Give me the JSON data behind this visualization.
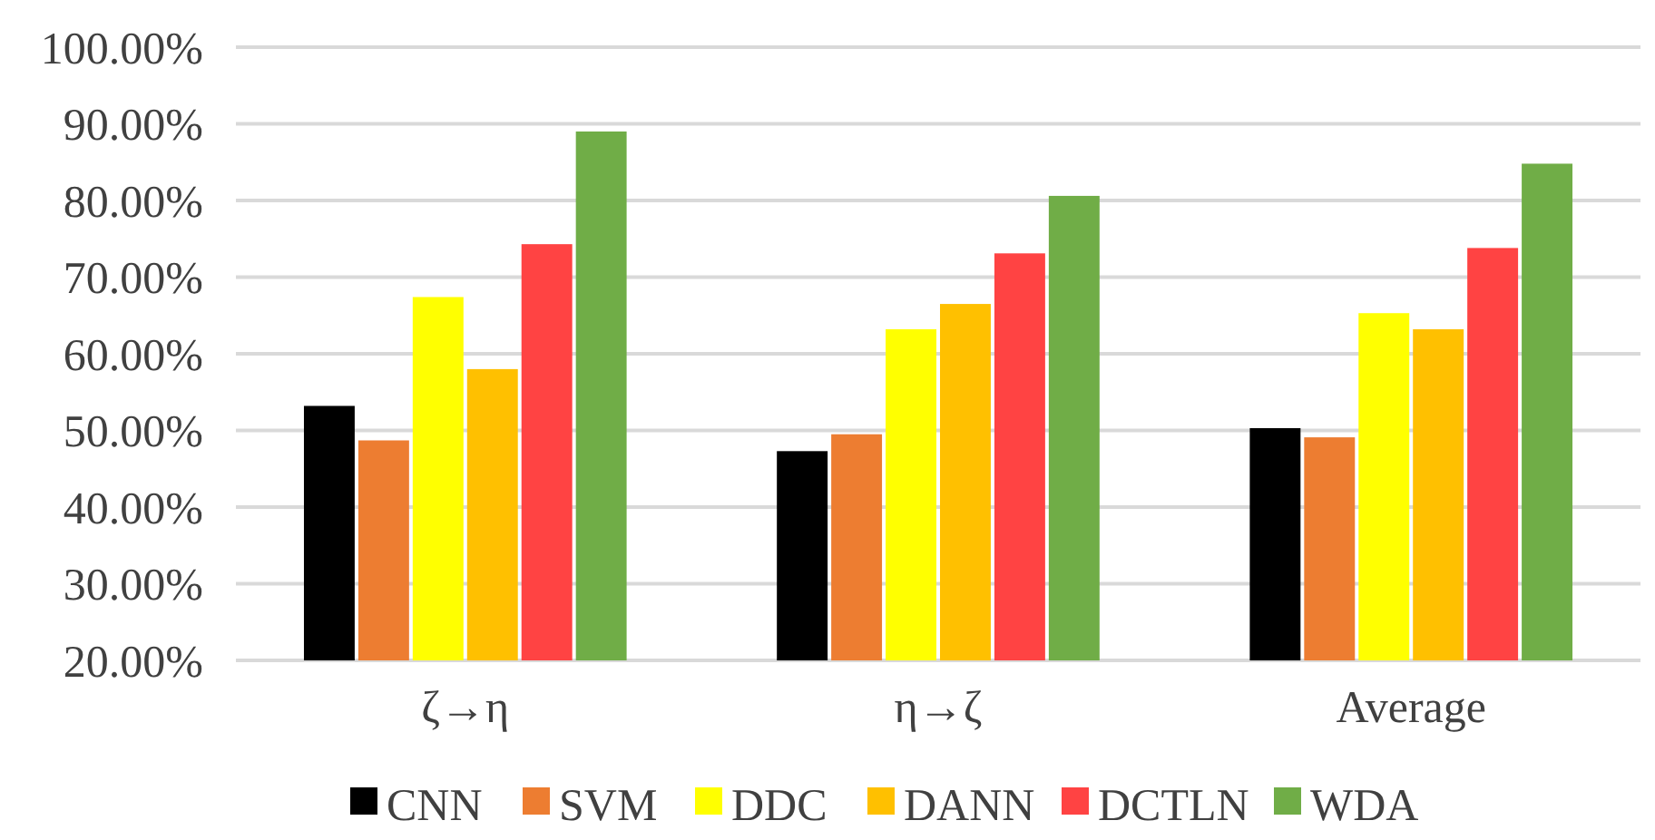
{
  "chart_data": {
    "type": "bar",
    "categories": [
      "ζ→η",
      "η→ζ",
      "Average"
    ],
    "series": [
      {
        "name": "CNN",
        "color": "#000000",
        "values": [
          53.2,
          47.3,
          50.3
        ]
      },
      {
        "name": "SVM",
        "color": "#ed7d31",
        "values": [
          48.7,
          49.5,
          49.1
        ]
      },
      {
        "name": "DDC",
        "color": "#ffff00",
        "values": [
          67.4,
          63.2,
          65.3
        ]
      },
      {
        "name": "DANN",
        "color": "#ffc000",
        "values": [
          58.0,
          66.5,
          63.2
        ]
      },
      {
        "name": "DCTLN",
        "color": "#ff4343",
        "values": [
          74.3,
          73.1,
          73.8
        ]
      },
      {
        "name": "WDA",
        "color": "#70ad47",
        "values": [
          89.0,
          80.6,
          84.8
        ]
      }
    ],
    "ylim": [
      20,
      100
    ],
    "yticks": [
      {
        "value": 20,
        "label": "20.00%"
      },
      {
        "value": 30,
        "label": "30.00%"
      },
      {
        "value": 40,
        "label": "40.00%"
      },
      {
        "value": 50,
        "label": "50.00%"
      },
      {
        "value": 60,
        "label": "60.00%"
      },
      {
        "value": 70,
        "label": "70.00%"
      },
      {
        "value": 80,
        "label": "80.00%"
      },
      {
        "value": 90,
        "label": "90.00%"
      },
      {
        "value": 100,
        "label": "100.00%"
      }
    ],
    "grid": "y",
    "legend": "bottom"
  }
}
